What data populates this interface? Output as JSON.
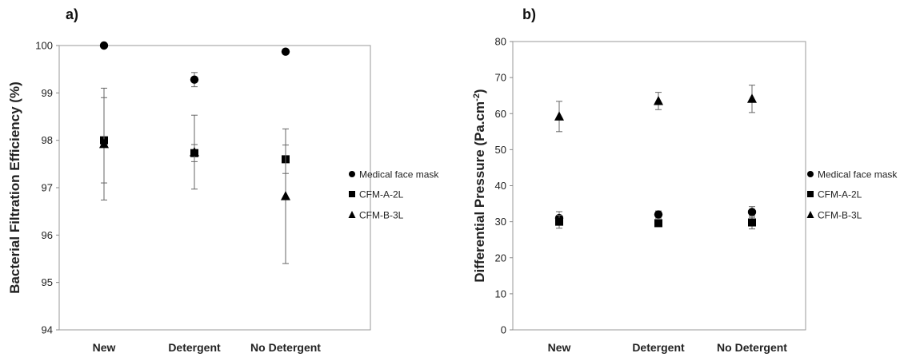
{
  "chart_data": [
    {
      "type": "scatter",
      "panel_label": "a)",
      "ylabel": "Bacterial Filtration Efficiency (%)",
      "categories": [
        "New",
        "Detergent",
        "No Detergent"
      ],
      "ylim": [
        94,
        100
      ],
      "yticks": [
        94,
        95,
        96,
        97,
        98,
        99,
        100
      ],
      "grid": false,
      "legend_position": "right",
      "series": [
        {
          "name": "Medical face mask",
          "marker": "circle",
          "values": [
            100.0,
            99.28,
            99.87
          ],
          "errors": [
            0.0,
            0.15,
            0.0
          ]
        },
        {
          "name": "CFM-A-2L",
          "marker": "square",
          "values": [
            98.0,
            97.73,
            97.6
          ],
          "errors": [
            0.9,
            0.18,
            0.3
          ]
        },
        {
          "name": "CFM-B-3L",
          "marker": "triangle",
          "values": [
            97.92,
            97.75,
            96.82
          ],
          "errors": [
            1.18,
            0.78,
            1.42
          ]
        }
      ]
    },
    {
      "type": "scatter",
      "panel_label": "b)",
      "ylabel": "Differential Pressure (Pa.cm",
      "ylabel_superscript": "-2",
      "ylabel_suffix": ")",
      "categories": [
        "New",
        "Detergent",
        "No Detergent"
      ],
      "ylim": [
        0,
        80
      ],
      "yticks": [
        0,
        10,
        20,
        30,
        40,
        50,
        60,
        70,
        80
      ],
      "grid": false,
      "legend_position": "right",
      "series": [
        {
          "name": "Medical face mask",
          "marker": "circle",
          "values": [
            31.0,
            32.0,
            32.7
          ],
          "errors": [
            1.8,
            1.0,
            1.5
          ]
        },
        {
          "name": "CFM-A-2L",
          "marker": "square",
          "values": [
            30.0,
            29.6,
            29.8
          ],
          "errors": [
            1.8,
            0.5,
            1.8
          ]
        },
        {
          "name": "CFM-B-3L",
          "marker": "triangle",
          "values": [
            59.2,
            63.5,
            64.1
          ],
          "errors": [
            4.2,
            2.4,
            3.8
          ]
        }
      ]
    }
  ]
}
